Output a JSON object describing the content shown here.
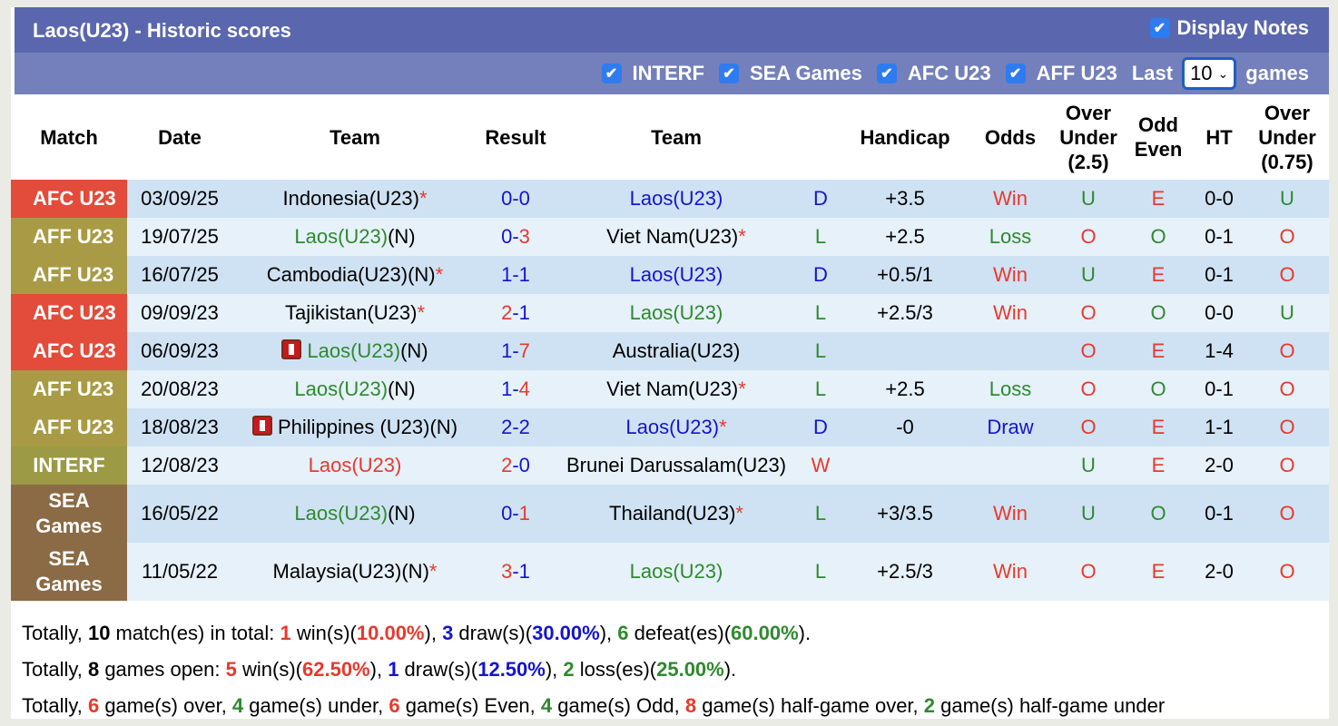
{
  "header": {
    "title": "Laos(U23) - Historic scores",
    "display_notes": "Display Notes"
  },
  "filters": {
    "items": [
      "INTERF",
      "SEA Games",
      "AFC U23",
      "AFF U23"
    ],
    "last_label": "Last",
    "last_value": "10",
    "games_label": "games"
  },
  "columns": [
    "Match",
    "Date",
    "Team",
    "Result",
    "Team",
    "",
    "Handicap",
    "Odds",
    "Over Under (2.5)",
    "Odd Even",
    "HT",
    "Over Under (0.75)"
  ],
  "colors": {
    "AFC U23": "#e34b3a",
    "AFF U23": "#a99b45",
    "INTERF": "#9c9a45",
    "SEA Games": "#8b6b45",
    "win": "#e8392c",
    "draw": "#1414d0",
    "loss": "#2e8a2e"
  },
  "rows": [
    {
      "match": "AFC U23",
      "date": "03/09/25",
      "home": {
        "name": "Indonesia(U23)",
        "suffix": "",
        "star": "*",
        "laos": false
      },
      "score": [
        0,
        0
      ],
      "away": {
        "name": "Laos(U23)",
        "suffix": "",
        "star": "",
        "laos": true
      },
      "wdl": "D",
      "handicap": "+3.5",
      "odds": "Win",
      "ou": "U",
      "oe": "E",
      "ht": "0-0",
      "ou075": "U"
    },
    {
      "match": "AFF U23",
      "date": "19/07/25",
      "home": {
        "name": "Laos(U23)",
        "suffix": "(N)",
        "star": "",
        "laos": true
      },
      "score": [
        0,
        3
      ],
      "away": {
        "name": "Viet Nam(U23)",
        "suffix": "",
        "star": "*",
        "laos": false
      },
      "wdl": "L",
      "handicap": "+2.5",
      "odds": "Loss",
      "ou": "O",
      "oe": "O",
      "ht": "0-1",
      "ou075": "O"
    },
    {
      "match": "AFF U23",
      "date": "16/07/25",
      "home": {
        "name": "Cambodia(U23)",
        "suffix": "(N)",
        "star": "*",
        "laos": false
      },
      "score": [
        1,
        1
      ],
      "away": {
        "name": "Laos(U23)",
        "suffix": "",
        "star": "",
        "laos": true
      },
      "wdl": "D",
      "handicap": "+0.5/1",
      "odds": "Win",
      "ou": "U",
      "oe": "E",
      "ht": "0-1",
      "ou075": "O"
    },
    {
      "match": "AFC U23",
      "date": "09/09/23",
      "home": {
        "name": "Tajikistan(U23)",
        "suffix": "",
        "star": "*",
        "laos": false
      },
      "score": [
        2,
        1
      ],
      "away": {
        "name": "Laos(U23)",
        "suffix": "",
        "star": "",
        "laos": true
      },
      "wdl": "L",
      "handicap": "+2.5/3",
      "odds": "Win",
      "ou": "O",
      "oe": "O",
      "ht": "0-0",
      "ou075": "U"
    },
    {
      "match": "AFC U23",
      "date": "06/09/23",
      "home": {
        "name": "Laos(U23)",
        "suffix": "(N)",
        "star": "",
        "laos": true,
        "flag": true
      },
      "score": [
        1,
        7
      ],
      "away": {
        "name": "Australia(U23)",
        "suffix": "",
        "star": "",
        "laos": false
      },
      "wdl": "L",
      "handicap": "",
      "odds": "",
      "ou": "O",
      "oe": "E",
      "ht": "1-4",
      "ou075": "O"
    },
    {
      "match": "AFF U23",
      "date": "20/08/23",
      "home": {
        "name": "Laos(U23)",
        "suffix": "(N)",
        "star": "",
        "laos": true
      },
      "score": [
        1,
        4
      ],
      "away": {
        "name": "Viet Nam(U23)",
        "suffix": "",
        "star": "*",
        "laos": false
      },
      "wdl": "L",
      "handicap": "+2.5",
      "odds": "Loss",
      "ou": "O",
      "oe": "O",
      "ht": "0-1",
      "ou075": "O"
    },
    {
      "match": "AFF U23",
      "date": "18/08/23",
      "home": {
        "name": "Philippines (U23)",
        "suffix": "(N)",
        "star": "",
        "laos": false,
        "flag": true
      },
      "score": [
        2,
        2
      ],
      "away": {
        "name": "Laos(U23)",
        "suffix": "",
        "star": "*",
        "laos": true
      },
      "wdl": "D",
      "handicap": "-0",
      "odds": "Draw",
      "ou": "O",
      "oe": "E",
      "ht": "1-1",
      "ou075": "O"
    },
    {
      "match": "INTERF",
      "date": "12/08/23",
      "home": {
        "name": "Laos(U23)",
        "suffix": "",
        "star": "",
        "laos": true
      },
      "score": [
        2,
        0
      ],
      "away": {
        "name": "Brunei Darussalam(U23)",
        "suffix": "",
        "star": "",
        "laos": false
      },
      "wdl": "W",
      "handicap": "",
      "odds": "",
      "ou": "U",
      "oe": "E",
      "ht": "2-0",
      "ou075": "O"
    },
    {
      "match": "SEA Games",
      "date": "16/05/22",
      "home": {
        "name": "Laos(U23)",
        "suffix": "(N)",
        "star": "",
        "laos": true
      },
      "score": [
        0,
        1
      ],
      "away": {
        "name": "Thailand(U23)",
        "suffix": "",
        "star": "*",
        "laos": false
      },
      "wdl": "L",
      "handicap": "+3/3.5",
      "odds": "Win",
      "ou": "U",
      "oe": "O",
      "ht": "0-1",
      "ou075": "O"
    },
    {
      "match": "SEA Games",
      "date": "11/05/22",
      "home": {
        "name": "Malaysia(U23)",
        "suffix": "(N)",
        "star": "*",
        "laos": false
      },
      "score": [
        3,
        1
      ],
      "away": {
        "name": "Laos(U23)",
        "suffix": "",
        "star": "",
        "laos": true
      },
      "wdl": "L",
      "handicap": "+2.5/3",
      "odds": "Win",
      "ou": "O",
      "oe": "E",
      "ht": "2-0",
      "ou075": "O"
    }
  ],
  "footer": [
    [
      {
        "t": "Totally, "
      },
      {
        "t": "10",
        "c": "bold"
      },
      {
        "t": " match(es) in total: "
      },
      {
        "t": "1",
        "c": "red"
      },
      {
        "t": " win(s)("
      },
      {
        "t": "10.00%",
        "c": "red"
      },
      {
        "t": "), "
      },
      {
        "t": "3",
        "c": "blue"
      },
      {
        "t": " draw(s)("
      },
      {
        "t": "30.00%",
        "c": "blue"
      },
      {
        "t": "), "
      },
      {
        "t": "6",
        "c": "green"
      },
      {
        "t": " defeat(es)("
      },
      {
        "t": "60.00%",
        "c": "green"
      },
      {
        "t": ")."
      }
    ],
    [
      {
        "t": "Totally, "
      },
      {
        "t": "8",
        "c": "bold"
      },
      {
        "t": " games open: "
      },
      {
        "t": "5",
        "c": "red"
      },
      {
        "t": " win(s)("
      },
      {
        "t": "62.50%",
        "c": "red"
      },
      {
        "t": "), "
      },
      {
        "t": "1",
        "c": "blue"
      },
      {
        "t": " draw(s)("
      },
      {
        "t": "12.50%",
        "c": "blue"
      },
      {
        "t": "), "
      },
      {
        "t": "2",
        "c": "green"
      },
      {
        "t": " loss(es)("
      },
      {
        "t": "25.00%",
        "c": "green"
      },
      {
        "t": ")."
      }
    ],
    [
      {
        "t": "Totally, "
      },
      {
        "t": "6",
        "c": "red"
      },
      {
        "t": " game(s) over, "
      },
      {
        "t": "4",
        "c": "green"
      },
      {
        "t": " game(s) under, "
      },
      {
        "t": "6",
        "c": "red"
      },
      {
        "t": " game(s) Even, "
      },
      {
        "t": "4",
        "c": "green"
      },
      {
        "t": " game(s) Odd, "
      },
      {
        "t": "8",
        "c": "red"
      },
      {
        "t": " game(s) half-game over, "
      },
      {
        "t": "2",
        "c": "green"
      },
      {
        "t": " game(s) half-game under"
      }
    ]
  ]
}
